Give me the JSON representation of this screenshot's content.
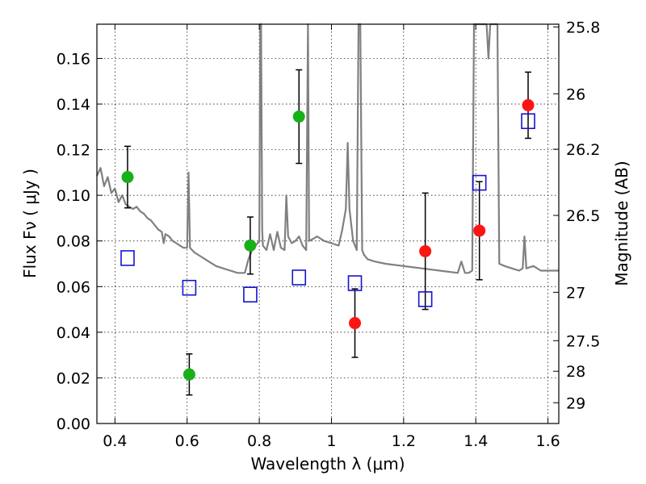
{
  "chart_data": {
    "type": "scatter",
    "title": "",
    "xlabel": "Wavelength  λ (μm)",
    "ylabel": "Flux  Fν  ( μJy )",
    "y2label": "Magnitude (AB)",
    "xlim": [
      0.35,
      1.63
    ],
    "ylim": [
      0.0,
      0.175
    ],
    "grid": true,
    "xticks": [
      0.4,
      0.6,
      0.8,
      1.0,
      1.2,
      1.4,
      1.6
    ],
    "xtick_labels": [
      "0.4",
      "0.6",
      "0.8",
      "1",
      "1.2",
      "1.4",
      "1.6"
    ],
    "yticks": [
      0.0,
      0.02,
      0.04,
      0.06,
      0.08,
      0.1,
      0.12,
      0.14,
      0.16
    ],
    "ytick_labels": [
      "0.00",
      "0.02",
      "0.04",
      "0.06",
      "0.08",
      "0.10",
      "0.12",
      "0.14",
      "0.16"
    ],
    "y2ticks": [
      {
        "label": "25.8",
        "flux": 0.1738
      },
      {
        "label": "26",
        "flux": 0.1445
      },
      {
        "label": "26.2",
        "flux": 0.1202
      },
      {
        "label": "26.5",
        "flux": 0.0912
      },
      {
        "label": "27",
        "flux": 0.0575
      },
      {
        "label": "27.5",
        "flux": 0.0363
      },
      {
        "label": "28",
        "flux": 0.0229
      },
      {
        "label": "29",
        "flux": 0.0091
      }
    ],
    "series": [
      {
        "marker": "circle",
        "color": "#18b018",
        "points": [
          {
            "x": 0.435,
            "y": 0.108,
            "err": 0.0135
          },
          {
            "x": 0.606,
            "y": 0.0215,
            "err": 0.009
          },
          {
            "x": 0.775,
            "y": 0.078,
            "err": 0.0125
          },
          {
            "x": 0.91,
            "y": 0.1345,
            "err": 0.0205
          }
        ]
      },
      {
        "marker": "circle",
        "color": "#ff1414",
        "points": [
          {
            "x": 1.065,
            "y": 0.044,
            "err": 0.015
          },
          {
            "x": 1.26,
            "y": 0.0755,
            "err": 0.0255
          },
          {
            "x": 1.41,
            "y": 0.0845,
            "err": 0.0215
          },
          {
            "x": 1.545,
            "y": 0.1395,
            "err": 0.0145
          }
        ]
      },
      {
        "marker": "square",
        "color": "#1414d0",
        "points": [
          {
            "x": 0.435,
            "y": 0.0725
          },
          {
            "x": 0.606,
            "y": 0.0595
          },
          {
            "x": 0.775,
            "y": 0.0565
          },
          {
            "x": 0.91,
            "y": 0.064
          },
          {
            "x": 1.065,
            "y": 0.0615
          },
          {
            "x": 1.26,
            "y": 0.0545
          },
          {
            "x": 1.41,
            "y": 0.1055
          },
          {
            "x": 1.545,
            "y": 0.1325
          }
        ]
      }
    ],
    "model_spectrum": {
      "color": "#808080",
      "points": [
        [
          0.35,
          0.1085
        ],
        [
          0.36,
          0.112
        ],
        [
          0.37,
          0.104
        ],
        [
          0.38,
          0.108
        ],
        [
          0.39,
          0.101
        ],
        [
          0.4,
          0.103
        ],
        [
          0.41,
          0.097
        ],
        [
          0.42,
          0.1
        ],
        [
          0.43,
          0.096
        ],
        [
          0.44,
          0.095
        ],
        [
          0.45,
          0.094
        ],
        [
          0.46,
          0.095
        ],
        [
          0.47,
          0.093
        ],
        [
          0.48,
          0.092
        ],
        [
          0.49,
          0.09
        ],
        [
          0.5,
          0.089
        ],
        [
          0.51,
          0.087
        ],
        [
          0.52,
          0.085
        ],
        [
          0.53,
          0.084
        ],
        [
          0.535,
          0.079
        ],
        [
          0.54,
          0.083
        ],
        [
          0.55,
          0.082
        ],
        [
          0.56,
          0.08
        ],
        [
          0.57,
          0.079
        ],
        [
          0.58,
          0.078
        ],
        [
          0.59,
          0.077
        ],
        [
          0.6,
          0.077
        ],
        [
          0.604,
          0.11
        ],
        [
          0.608,
          0.077
        ],
        [
          0.62,
          0.075
        ],
        [
          0.64,
          0.073
        ],
        [
          0.66,
          0.071
        ],
        [
          0.68,
          0.069
        ],
        [
          0.7,
          0.068
        ],
        [
          0.72,
          0.067
        ],
        [
          0.74,
          0.066
        ],
        [
          0.76,
          0.066
        ],
        [
          0.77,
          0.072
        ],
        [
          0.78,
          0.076
        ],
        [
          0.79,
          0.078
        ],
        [
          0.8,
          0.08
        ],
        [
          0.803,
          0.175
        ],
        [
          0.805,
          0.175
        ],
        [
          0.808,
          0.085
        ],
        [
          0.81,
          0.078
        ],
        [
          0.82,
          0.076
        ],
        [
          0.83,
          0.083
        ],
        [
          0.84,
          0.076
        ],
        [
          0.85,
          0.084
        ],
        [
          0.86,
          0.077
        ],
        [
          0.87,
          0.076
        ],
        [
          0.875,
          0.1
        ],
        [
          0.88,
          0.082
        ],
        [
          0.89,
          0.079
        ],
        [
          0.9,
          0.08
        ],
        [
          0.91,
          0.082
        ],
        [
          0.92,
          0.078
        ],
        [
          0.93,
          0.076
        ],
        [
          0.935,
          0.175
        ],
        [
          0.938,
          0.08
        ],
        [
          0.95,
          0.081
        ],
        [
          0.96,
          0.082
        ],
        [
          0.98,
          0.08
        ],
        [
          1.0,
          0.079
        ],
        [
          1.02,
          0.078
        ],
        [
          1.03,
          0.085
        ],
        [
          1.04,
          0.094
        ],
        [
          1.045,
          0.123
        ],
        [
          1.05,
          0.094
        ],
        [
          1.06,
          0.08
        ],
        [
          1.07,
          0.076
        ],
        [
          1.075,
          0.175
        ],
        [
          1.08,
          0.175
        ],
        [
          1.085,
          0.076
        ],
        [
          1.09,
          0.074
        ],
        [
          1.1,
          0.072
        ],
        [
          1.12,
          0.071
        ],
        [
          1.15,
          0.07
        ],
        [
          1.2,
          0.069
        ],
        [
          1.25,
          0.068
        ],
        [
          1.3,
          0.067
        ],
        [
          1.35,
          0.066
        ],
        [
          1.36,
          0.071
        ],
        [
          1.37,
          0.066
        ],
        [
          1.38,
          0.066
        ],
        [
          1.39,
          0.067
        ],
        [
          1.395,
          0.175
        ],
        [
          1.43,
          0.175
        ],
        [
          1.435,
          0.16
        ],
        [
          1.44,
          0.175
        ],
        [
          1.46,
          0.175
        ],
        [
          1.465,
          0.07
        ],
        [
          1.48,
          0.069
        ],
        [
          1.5,
          0.068
        ],
        [
          1.52,
          0.067
        ],
        [
          1.53,
          0.068
        ],
        [
          1.535,
          0.082
        ],
        [
          1.54,
          0.068
        ],
        [
          1.56,
          0.069
        ],
        [
          1.58,
          0.067
        ],
        [
          1.6,
          0.067
        ],
        [
          1.63,
          0.067
        ]
      ]
    }
  }
}
